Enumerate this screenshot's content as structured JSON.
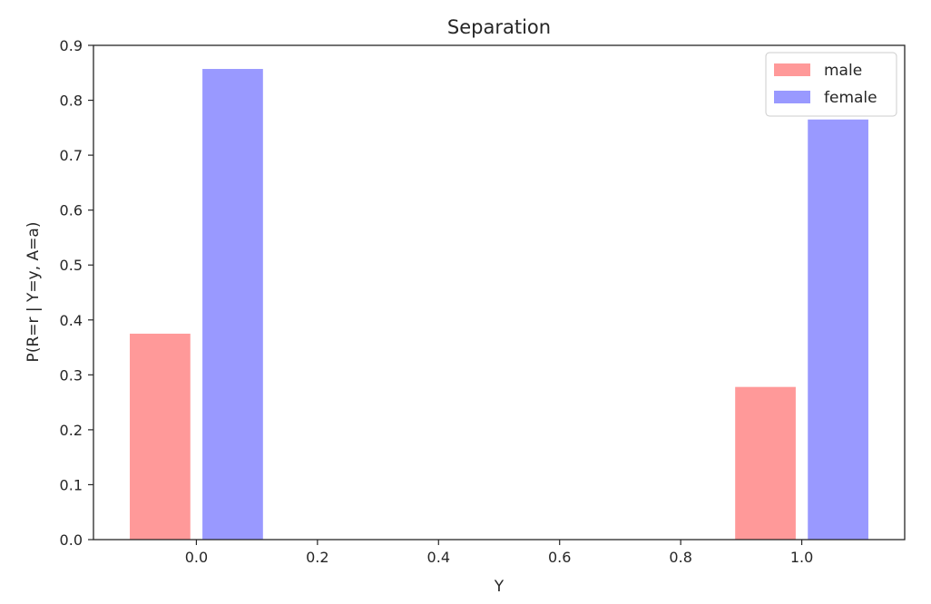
{
  "chart_data": {
    "type": "bar",
    "title": "Separation",
    "xlabel": "Y",
    "ylabel": "P(R=r | Y=y, A=a)",
    "xlim": [
      -0.17,
      1.17
    ],
    "ylim": [
      0,
      0.9
    ],
    "xticks": [
      0.0,
      0.2,
      0.4,
      0.6,
      0.8,
      1.0
    ],
    "xtick_labels": [
      "0.0",
      "0.2",
      "0.4",
      "0.6",
      "0.8",
      "1.0"
    ],
    "yticks": [
      0.0,
      0.1,
      0.2,
      0.3,
      0.4,
      0.5,
      0.6,
      0.7,
      0.8,
      0.9
    ],
    "ytick_labels": [
      "0.0",
      "0.1",
      "0.2",
      "0.3",
      "0.4",
      "0.5",
      "0.6",
      "0.7",
      "0.8",
      "0.9"
    ],
    "grid": false,
    "legend_position": "top-right",
    "bar_width": 0.1,
    "series": [
      {
        "name": "male",
        "color": "#ff9999",
        "x": [
          -0.06,
          0.94
        ],
        "values": [
          0.375,
          0.278
        ]
      },
      {
        "name": "female",
        "color": "#9999ff",
        "x": [
          0.06,
          1.06
        ],
        "values": [
          0.857,
          0.765
        ]
      }
    ]
  }
}
